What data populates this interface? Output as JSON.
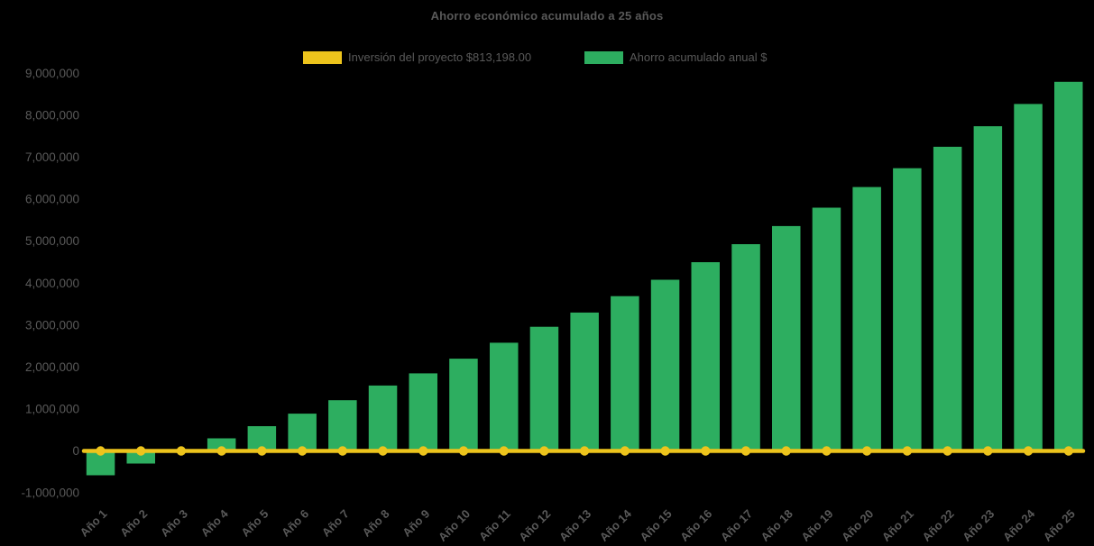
{
  "page": {
    "background": "#000000"
  },
  "title": {
    "text": "Ahorro económico acumulado a 25 años",
    "color": "#595959"
  },
  "legend": {
    "items": [
      {
        "label": "Inversión del proyecto $813,198.00",
        "color": "#EDC41C"
      },
      {
        "label": "Ahorro acumulado anual $",
        "color": "#2DAE60"
      }
    ]
  },
  "chart_data": {
    "type": "bar",
    "title": "Ahorro económico acumulado a 25 años",
    "categories": [
      "Año 1",
      "Año 2",
      "Año 3",
      "Año 4",
      "Año 5",
      "Año 6",
      "Año 7",
      "Año 8",
      "Año 9",
      "Año 10",
      "Año 11",
      "Año 12",
      "Año 13",
      "Año 14",
      "Año 15",
      "Año 16",
      "Año 17",
      "Año 18",
      "Año 19",
      "Año 20",
      "Año 21",
      "Año 22",
      "Año 23",
      "Año 24",
      "Año 25"
    ],
    "series": [
      {
        "name": "Ahorro acumulado anual $",
        "kind": "bar",
        "color": "#2DAE60",
        "values": [
          -580000,
          -300000,
          20000,
          300000,
          590000,
          890000,
          1210000,
          1560000,
          1850000,
          2200000,
          2580000,
          2960000,
          3300000,
          3690000,
          4080000,
          4500000,
          4930000,
          5360000,
          5800000,
          6290000,
          6740000,
          7250000,
          7740000,
          8270000,
          8800000
        ]
      },
      {
        "name": "Inversión del proyecto $813,198.00",
        "kind": "line",
        "color": "#EDC41C",
        "marker": "circle",
        "constant_display_value": 0
      }
    ],
    "yticks": [
      {
        "value": -1000000,
        "label": "-1,000,000"
      },
      {
        "value": 0,
        "label": "0"
      },
      {
        "value": 1000000,
        "label": "1,000,000"
      },
      {
        "value": 2000000,
        "label": "2,000,000"
      },
      {
        "value": 3000000,
        "label": "3,000,000"
      },
      {
        "value": 4000000,
        "label": "4,000,000"
      },
      {
        "value": 5000000,
        "label": "5,000,000"
      },
      {
        "value": 6000000,
        "label": "6,000,000"
      },
      {
        "value": 7000000,
        "label": "7,000,000"
      },
      {
        "value": 8000000,
        "label": "8,000,000"
      },
      {
        "value": 9000000,
        "label": "9,000,000"
      }
    ],
    "ylim": [
      -1000000,
      9000000
    ],
    "xlabel": "",
    "ylabel": "",
    "grid": false,
    "legend_position": "top",
    "tick_color": "#595959",
    "x_tick_rotation_deg": -45
  }
}
